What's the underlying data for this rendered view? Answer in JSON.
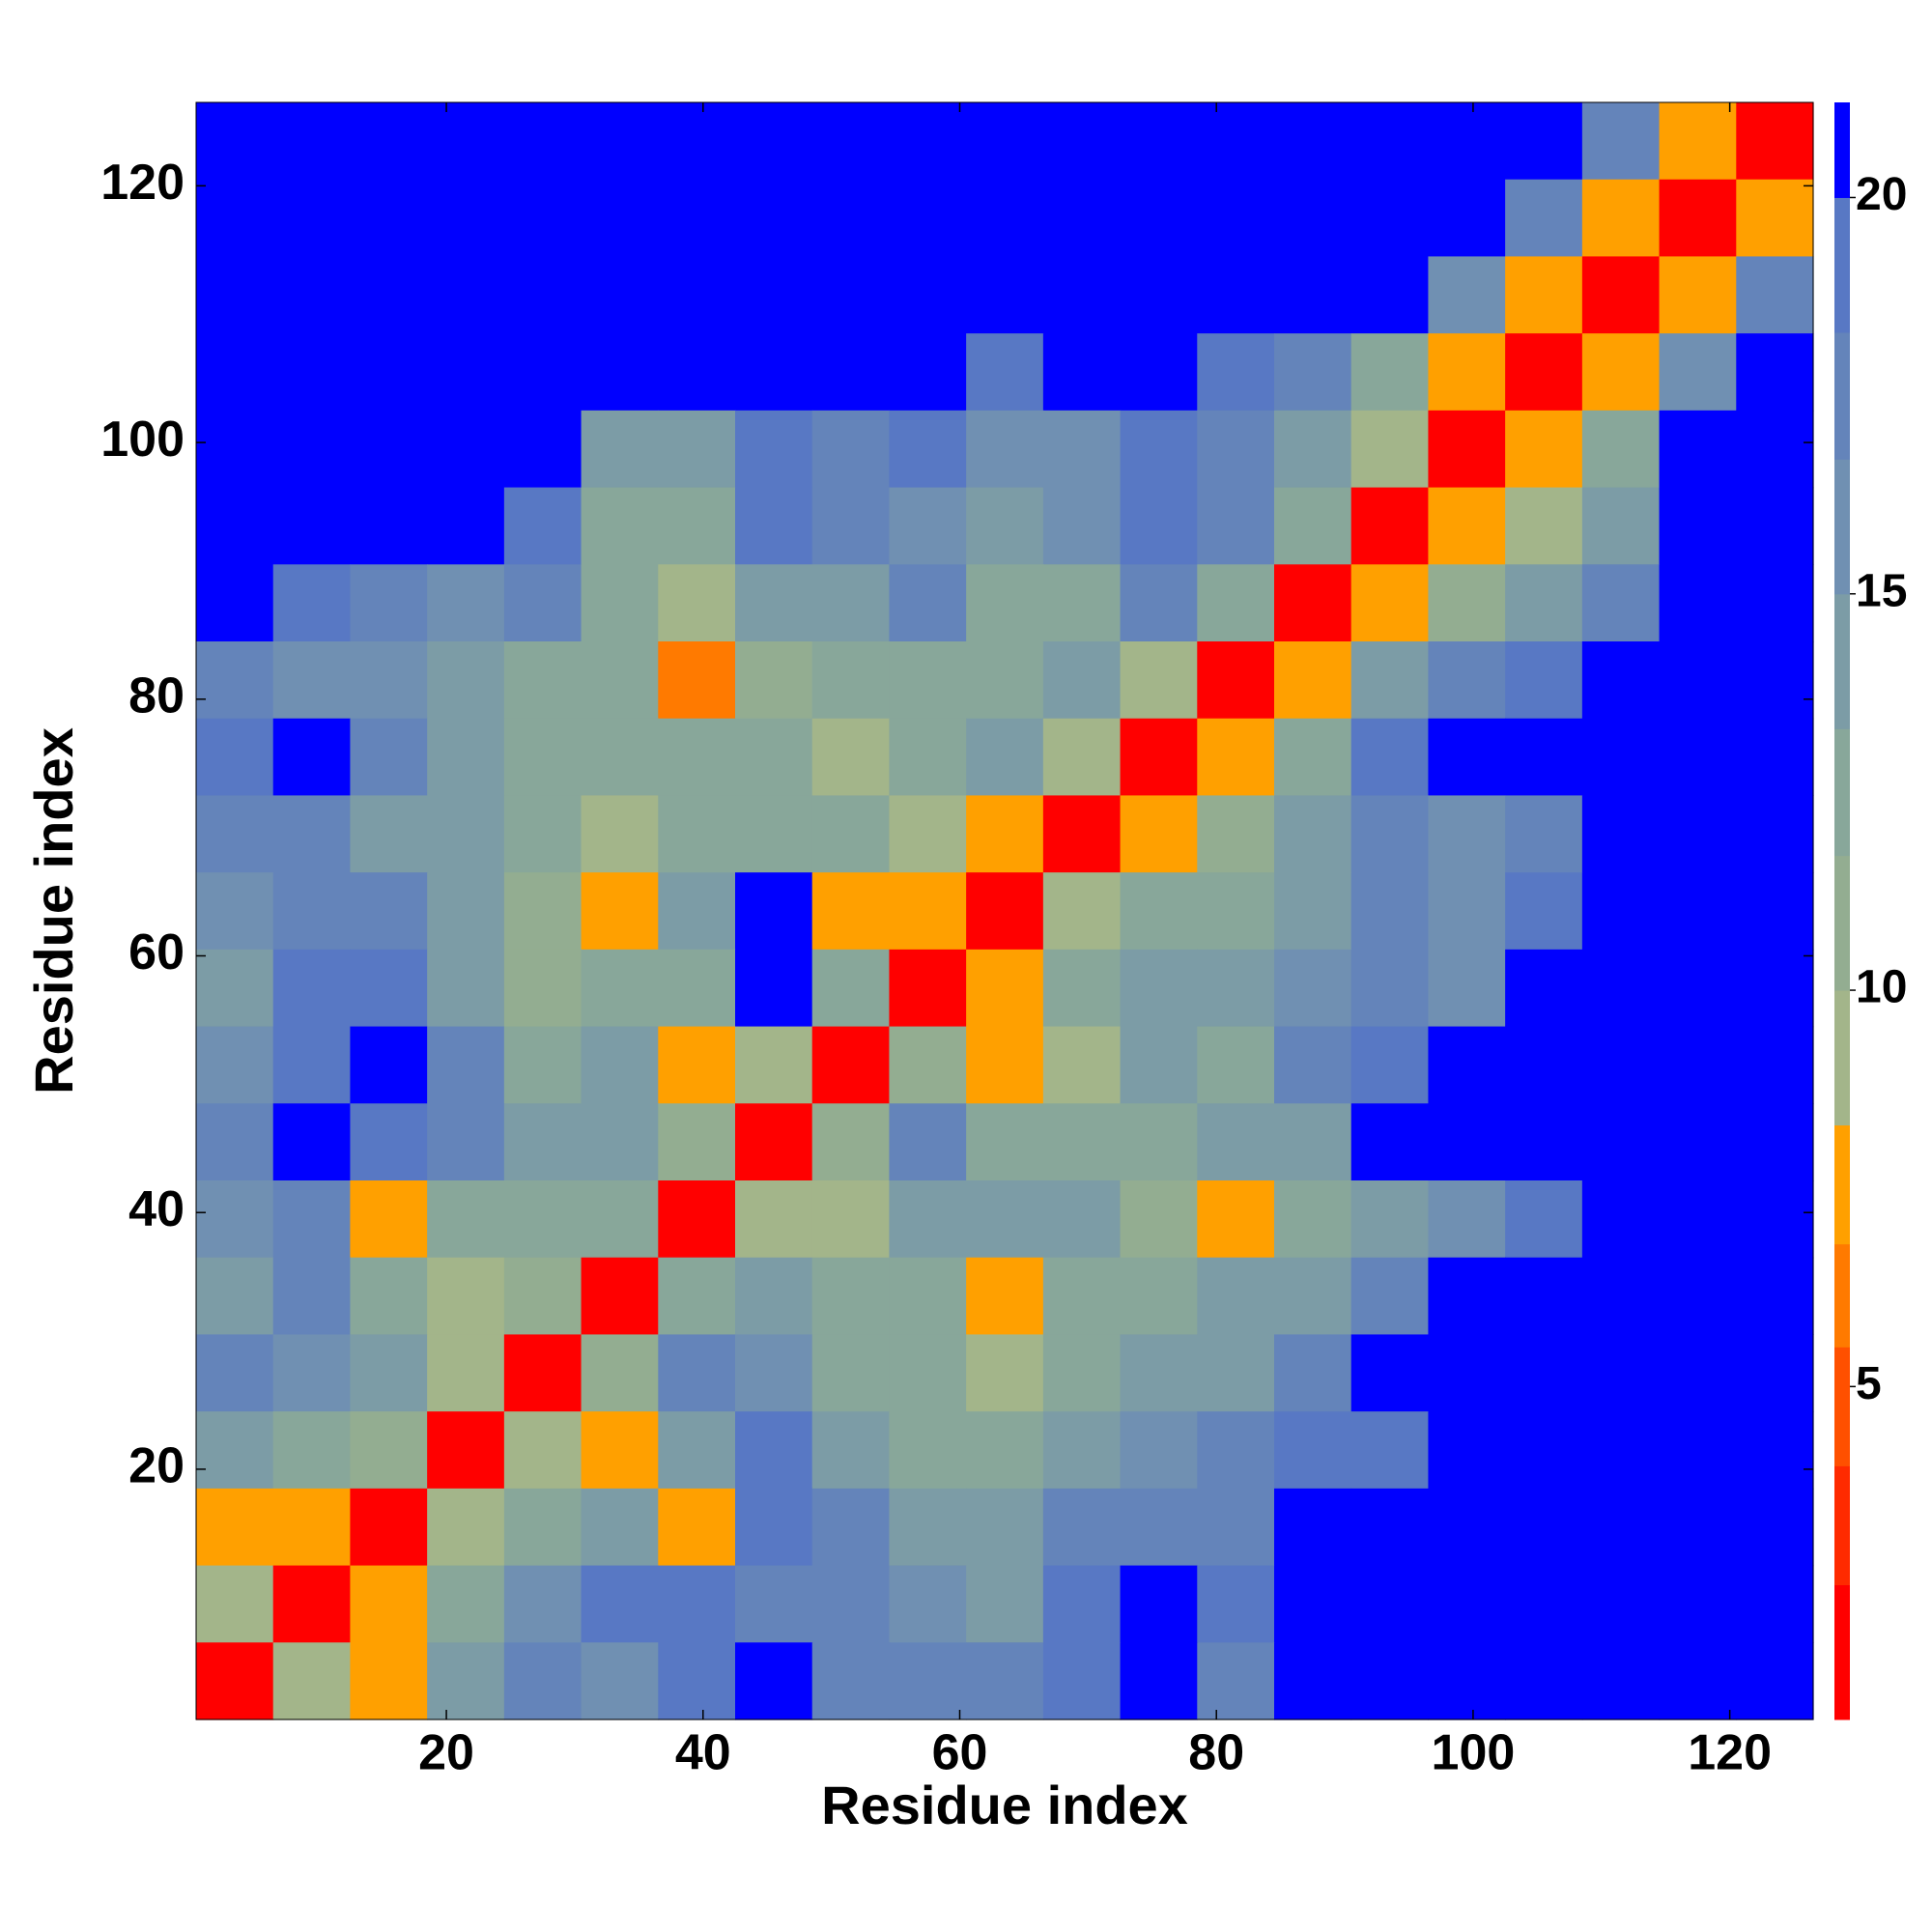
{
  "chart_data": {
    "type": "heatmap",
    "xlabel": "Residue index",
    "ylabel": "Residue index",
    "xlim": [
      0.5,
      126.5
    ],
    "ylim": [
      0.5,
      126.5
    ],
    "xticks": [
      20,
      40,
      60,
      80,
      100,
      120
    ],
    "yticks": [
      20,
      40,
      60,
      80,
      100,
      120
    ],
    "clim": [
      0.8,
      21.2
    ],
    "cticks": [
      5,
      10,
      15,
      20
    ],
    "cell_size": 6,
    "colorscale": [
      [
        2.5,
        "#ff0000"
      ],
      [
        4,
        "#ff2a00"
      ],
      [
        5.5,
        "#ff5000"
      ],
      [
        6.8,
        "#ff7a00"
      ],
      [
        8.3,
        "#ffa000"
      ],
      [
        10,
        "#a3b58a"
      ],
      [
        11.7,
        "#93ad91"
      ],
      [
        13.3,
        "#88a79a"
      ],
      [
        15,
        "#7c9ca6"
      ],
      [
        16.7,
        "#7090b2"
      ],
      [
        18.3,
        "#6484ba"
      ],
      [
        20,
        "#5878c4"
      ],
      [
        21.2,
        "#0000ff"
      ]
    ],
    "x": [
      3.5,
      9.5,
      15.5,
      21.5,
      27.5,
      33.5,
      39.5,
      45.5,
      51.5,
      57.5,
      63.5,
      69.5,
      75.5,
      81.5,
      87.5,
      93.5,
      99.5,
      105.5,
      111.5,
      117.5,
      123.5
    ],
    "y": [
      123.5,
      117.5,
      111.5,
      105.5,
      99.5,
      93.5,
      87.5,
      81.5,
      75.5,
      69.5,
      63.5,
      57.5,
      51.5,
      45.5,
      39.5,
      33.5,
      27.5,
      21.5,
      15.5,
      9.5,
      3.5
    ],
    "values": [
      [
        21,
        21,
        21,
        21,
        21,
        21,
        21,
        21,
        21,
        21,
        21,
        21,
        21,
        21,
        21,
        21,
        21,
        21,
        18,
        7,
        1.5
      ],
      [
        21,
        21,
        21,
        21,
        21,
        21,
        21,
        21,
        21,
        21,
        21,
        21,
        21,
        21,
        21,
        21,
        21,
        17,
        8,
        1.5,
        7
      ],
      [
        21,
        21,
        21,
        21,
        21,
        21,
        21,
        21,
        21,
        21,
        21,
        21,
        21,
        21,
        21,
        21,
        16,
        8,
        1.5,
        8,
        18
      ],
      [
        21,
        21,
        21,
        21,
        21,
        21,
        21,
        21,
        21,
        21,
        19,
        21,
        21,
        19,
        18,
        12,
        7,
        1.5,
        7,
        16,
        21
      ],
      [
        21,
        21,
        21,
        21,
        21,
        15,
        15,
        19,
        18,
        19,
        16,
        16,
        20,
        17,
        14,
        9,
        1.5,
        7,
        12,
        21,
        21
      ],
      [
        21,
        21,
        21,
        21,
        20,
        12,
        12,
        19,
        17,
        16,
        14,
        16,
        20,
        17,
        12,
        1.5,
        7,
        10,
        15,
        21,
        21
      ],
      [
        21,
        20,
        18,
        16,
        17,
        13,
        9,
        14,
        14,
        18,
        12,
        13,
        17,
        12,
        1.5,
        7,
        11,
        14,
        18,
        21,
        21
      ],
      [
        17,
        16,
        16,
        15,
        12,
        12,
        6,
        11,
        12,
        13,
        12,
        15,
        9,
        1.5,
        8,
        14,
        18,
        20,
        21,
        21,
        21
      ],
      [
        19,
        21,
        17,
        15,
        13,
        12,
        13,
        12,
        10,
        13,
        14,
        9,
        1.5,
        7,
        13,
        19,
        21,
        21,
        21,
        21,
        21
      ],
      [
        18,
        17,
        15,
        14,
        12,
        9,
        13,
        12,
        13,
        10,
        8,
        1.5,
        8,
        11,
        14,
        17,
        16,
        18,
        21,
        21,
        21
      ],
      [
        16,
        18,
        17,
        15,
        11,
        7,
        14,
        21,
        8,
        7,
        1.5,
        10,
        12,
        12,
        15,
        17,
        16,
        19,
        21,
        21,
        21
      ],
      [
        15,
        19,
        20,
        15,
        11,
        12,
        13,
        21,
        12,
        1.5,
        7,
        12,
        14,
        14,
        16,
        18,
        16,
        21,
        21,
        21,
        21
      ],
      [
        16,
        20,
        21,
        17,
        13,
        14,
        8,
        10,
        1.5,
        11,
        8,
        10,
        14,
        13,
        18,
        19,
        21,
        21,
        21,
        21,
        21
      ],
      [
        18,
        21,
        20,
        17,
        15,
        14,
        11,
        1.5,
        11,
        18,
        13,
        12,
        12,
        14,
        15,
        21,
        21,
        21,
        21,
        21,
        21
      ],
      [
        16,
        17,
        8,
        13,
        13,
        13,
        1.5,
        10,
        9,
        15,
        14,
        15,
        11,
        8,
        13,
        15,
        16,
        20,
        21,
        21,
        21
      ],
      [
        15,
        18,
        13,
        10,
        11,
        1.5,
        13,
        14,
        13,
        12,
        8,
        12,
        13,
        14,
        15,
        18,
        21,
        21,
        21,
        21,
        21
      ],
      [
        17,
        16,
        15,
        10,
        1.5,
        11,
        18,
        16,
        13,
        12,
        10,
        13,
        15,
        14,
        17,
        21,
        21,
        21,
        21,
        21,
        21
      ],
      [
        14,
        13,
        11,
        1.5,
        9,
        8,
        15,
        20,
        15,
        12,
        12,
        14,
        16,
        18,
        19,
        20,
        21,
        21,
        21,
        21,
        21
      ],
      [
        8,
        7,
        1.5,
        10,
        13,
        14,
        8,
        19,
        17,
        14,
        14,
        17,
        18,
        17,
        21,
        21,
        21,
        21,
        21,
        21,
        21
      ],
      [
        10,
        1.5,
        8,
        12,
        16,
        20,
        19,
        18,
        18,
        16,
        15,
        20,
        21,
        20,
        21,
        21,
        21,
        21,
        21,
        21,
        21
      ],
      [
        1.5,
        9,
        8,
        14,
        18,
        16,
        19,
        21,
        18,
        17,
        17,
        20,
        21,
        17,
        21,
        21,
        21,
        21,
        21,
        21,
        21
      ]
    ]
  }
}
